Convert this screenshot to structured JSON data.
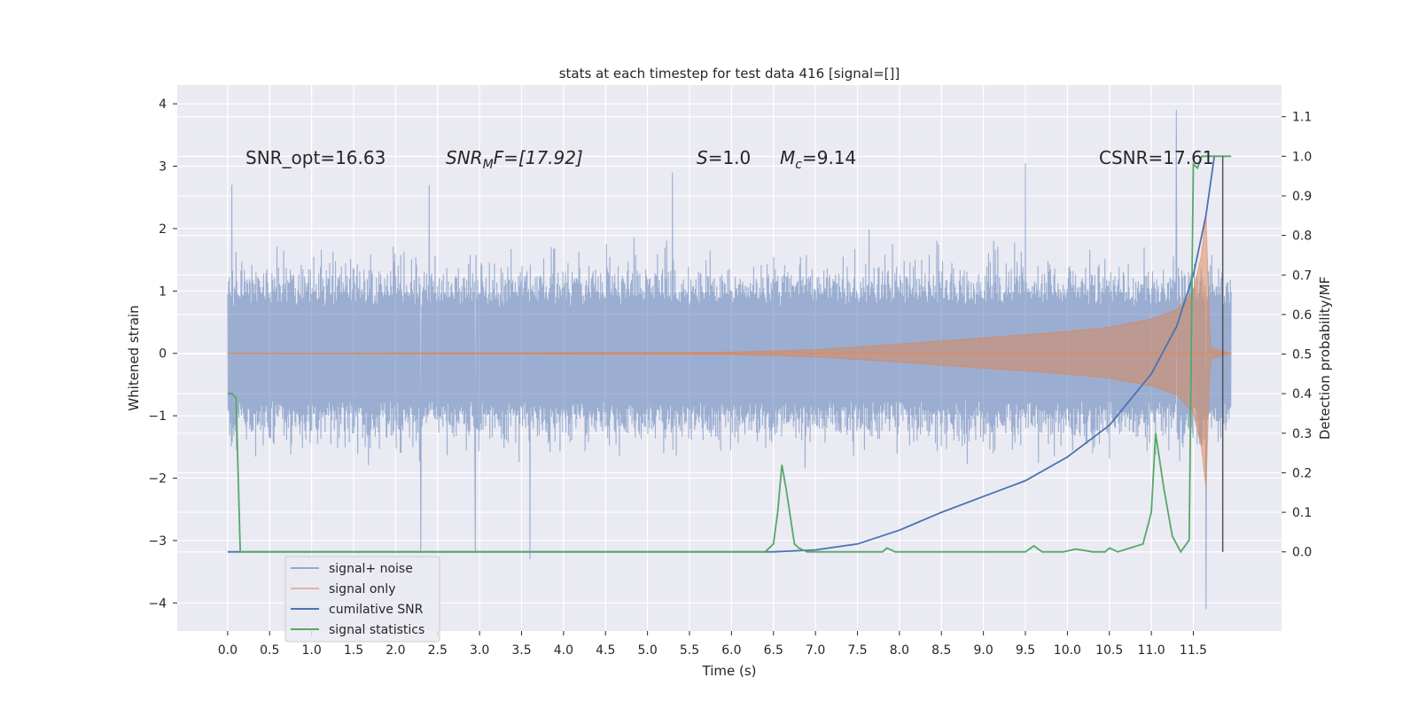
{
  "chart_data": {
    "type": "line",
    "title": "stats at each timestep for test data 416 [signal=[]]",
    "xlabel": "Time (s)",
    "ylabel_left": "Whitened strain",
    "ylabel_right": "Detection probability/MF",
    "xlim": [
      -0.6,
      12.55
    ],
    "ylim_left": [
      -4.45,
      4.3
    ],
    "ylim_right": [
      -0.2,
      1.18
    ],
    "x_ticks": [
      "0.0",
      "0.5",
      "1.0",
      "1.5",
      "2.0",
      "2.5",
      "3.0",
      "3.5",
      "4.0",
      "4.5",
      "5.0",
      "5.5",
      "6.0",
      "6.5",
      "7.0",
      "7.5",
      "8.0",
      "8.5",
      "9.0",
      "9.5",
      "10.0",
      "10.5",
      "11.0",
      "11.5"
    ],
    "y_ticks_left": [
      "4",
      "3",
      "2",
      "1",
      "0",
      "−1",
      "−2",
      "−3",
      "−4"
    ],
    "y_ticks_right": [
      "1.1",
      "1.0",
      "0.9",
      "0.8",
      "0.7",
      "0.6",
      "0.5",
      "0.4",
      "0.3",
      "0.2",
      "0.1",
      "0.0"
    ],
    "grid": true,
    "legend_position": "lower-left",
    "colors": {
      "background": "#eaeaf2",
      "grid": "#ffffff",
      "signal_noise": "#4c72b0",
      "signal_only": "#dd8452",
      "cumulative_snr": "#4c72b0",
      "signal_statistics": "#55a868",
      "marker_line": "#555555"
    },
    "annotations": {
      "snr_opt": "SNR_opt=16.63",
      "snr_mf_main": "SNR",
      "snr_mf_sub": "M",
      "snr_mf_rest": "F=[17.92]",
      "s_var": "S",
      "s_value": "=1.0",
      "mc_var": "M",
      "mc_sub": "c",
      "mc_value": "=9.14",
      "csnr": "CSNR=17.61"
    },
    "marker_line_x": 11.85,
    "series": [
      {
        "name": "signal+ noise",
        "axis": "left",
        "description_envelope": "noisy strain, roughly ±1.7 with spikes up to 3.9 and down to −4.1",
        "x_range": [
          0.0,
          11.95
        ],
        "typical_amplitude": 1.7,
        "spikes": [
          {
            "x": 0.05,
            "y": 2.7
          },
          {
            "x": 2.4,
            "y": 2.7
          },
          {
            "x": 2.3,
            "y": -3.2
          },
          {
            "x": 3.6,
            "y": -3.3
          },
          {
            "x": 5.3,
            "y": 2.9
          },
          {
            "x": 9.5,
            "y": 3.05
          },
          {
            "x": 11.3,
            "y": 3.9
          },
          {
            "x": 11.65,
            "y": -4.1
          },
          {
            "x": 2.95,
            "y": -3.2
          }
        ]
      },
      {
        "name": "signal only",
        "axis": "left",
        "x": [
          0.0,
          6.0,
          7.0,
          8.0,
          9.0,
          10.0,
          10.5,
          11.0,
          11.3,
          11.5,
          11.6,
          11.65,
          11.7,
          11.95
        ],
        "envelope": [
          0.0,
          0.02,
          0.06,
          0.15,
          0.25,
          0.35,
          0.42,
          0.55,
          0.7,
          1.0,
          1.6,
          2.3,
          0.1,
          0.0
        ]
      },
      {
        "name": "cumilative SNR",
        "axis": "right",
        "x": [
          0.0,
          6.5,
          7.0,
          7.5,
          8.0,
          8.5,
          9.0,
          9.5,
          10.0,
          10.5,
          11.0,
          11.3,
          11.5,
          11.65,
          11.75
        ],
        "values": [
          0.0,
          0.0,
          0.005,
          0.02,
          0.055,
          0.1,
          0.14,
          0.18,
          0.24,
          0.32,
          0.45,
          0.57,
          0.7,
          0.85,
          1.0
        ]
      },
      {
        "name": "signal statistics",
        "axis": "right",
        "x": [
          0.0,
          0.05,
          0.1,
          0.15,
          0.2,
          4.5,
          4.6,
          5.9,
          6.0,
          6.4,
          6.5,
          6.55,
          6.6,
          6.65,
          6.75,
          6.8,
          6.9,
          7.0,
          7.8,
          7.85,
          7.95,
          9.5,
          9.6,
          9.7,
          9.95,
          10.1,
          10.3,
          10.45,
          10.5,
          10.6,
          10.9,
          11.0,
          11.05,
          11.15,
          11.25,
          11.35,
          11.45,
          11.5,
          11.55,
          11.6,
          11.7,
          11.95
        ],
        "values": [
          0.4,
          0.4,
          0.39,
          0.0,
          0.0,
          0.0,
          0.0,
          0.0,
          0.0,
          0.0,
          0.02,
          0.1,
          0.22,
          0.16,
          0.02,
          0.01,
          0.0,
          0.0,
          0.0,
          0.01,
          0.0,
          0.0,
          0.015,
          0.0,
          0.0,
          0.007,
          0.0,
          0.0,
          0.01,
          0.0,
          0.02,
          0.1,
          0.3,
          0.16,
          0.04,
          0.0,
          0.03,
          0.98,
          0.97,
          1.0,
          1.0,
          1.0
        ]
      }
    ]
  }
}
